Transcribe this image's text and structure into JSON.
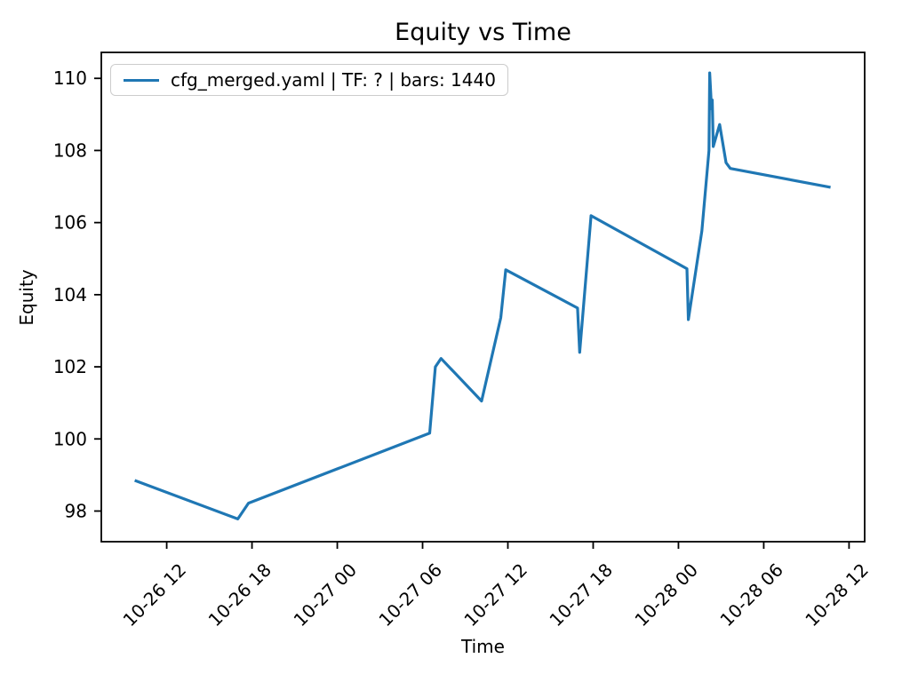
{
  "chart_data": {
    "type": "line",
    "title": "Equity vs Time",
    "xlabel": "Time",
    "ylabel": "Equity",
    "legend_label": "cfg_merged.yaml | TF: ? | bars: 1440",
    "legend_position": "upper left",
    "line_color": "#1f77b4",
    "axis_color": "#000000",
    "grid": false,
    "x_axis_note": "t = hours since 10-26 00:00; tick labels MM-DD HH, rotated 45deg",
    "xlim": [
      7.4,
      61.1
    ],
    "ylim": [
      97.15,
      110.72
    ],
    "x_ticks": [
      {
        "t": 12,
        "label": "10-26 12"
      },
      {
        "t": 18,
        "label": "10-26 18"
      },
      {
        "t": 24,
        "label": "10-27 00"
      },
      {
        "t": 30,
        "label": "10-27 06"
      },
      {
        "t": 36,
        "label": "10-27 12"
      },
      {
        "t": 42,
        "label": "10-27 18"
      },
      {
        "t": 48,
        "label": "10-28 00"
      },
      {
        "t": 54,
        "label": "10-28 06"
      },
      {
        "t": 60,
        "label": "10-28 12"
      }
    ],
    "y_ticks": [
      98,
      100,
      102,
      104,
      106,
      108,
      110
    ],
    "series": [
      {
        "name": "cfg_merged.yaml | TF: ? | bars: 1440",
        "points": [
          {
            "t": 9.75,
            "time": "10-26 09:45",
            "equity": 98.85
          },
          {
            "t": 17.0,
            "time": "10-26 17:00",
            "equity": 97.78
          },
          {
            "t": 17.75,
            "time": "10-26 17:45",
            "equity": 98.22
          },
          {
            "t": 30.5,
            "time": "10-27 06:30",
            "equity": 100.16
          },
          {
            "t": 30.9,
            "time": "10-27 06:55",
            "equity": 102.0
          },
          {
            "t": 31.3,
            "time": "10-27 07:20",
            "equity": 102.23
          },
          {
            "t": 34.15,
            "time": "10-27 10:10",
            "equity": 101.05
          },
          {
            "t": 35.5,
            "time": "10-27 11:30",
            "equity": 103.36
          },
          {
            "t": 35.85,
            "time": "10-27 11:50",
            "equity": 104.69
          },
          {
            "t": 40.9,
            "time": "10-27 16:55",
            "equity": 103.63
          },
          {
            "t": 41.05,
            "time": "10-27 17:05",
            "equity": 102.4
          },
          {
            "t": 41.85,
            "time": "10-27 17:50",
            "equity": 106.19
          },
          {
            "t": 48.6,
            "time": "10-28 00:35",
            "equity": 104.72
          },
          {
            "t": 48.7,
            "time": "10-28 00:40",
            "equity": 103.31
          },
          {
            "t": 49.65,
            "time": "10-28 01:40",
            "equity": 105.77
          },
          {
            "t": 50.15,
            "time": "10-28 02:10",
            "equity": 108.0
          },
          {
            "t": 50.2,
            "time": "10-28 02:12",
            "equity": 110.15
          },
          {
            "t": 50.33,
            "time": "10-28 02:20",
            "equity": 109.15
          },
          {
            "t": 50.38,
            "time": "10-28 02:23",
            "equity": 109.4
          },
          {
            "t": 50.45,
            "time": "10-28 02:27",
            "equity": 108.11
          },
          {
            "t": 50.9,
            "time": "10-28 02:55",
            "equity": 108.72
          },
          {
            "t": 51.35,
            "time": "10-28 03:20",
            "equity": 107.66
          },
          {
            "t": 51.65,
            "time": "10-28 03:40",
            "equity": 107.5
          },
          {
            "t": 58.7,
            "time": "10-28 10:40",
            "equity": 106.98
          }
        ]
      }
    ]
  }
}
